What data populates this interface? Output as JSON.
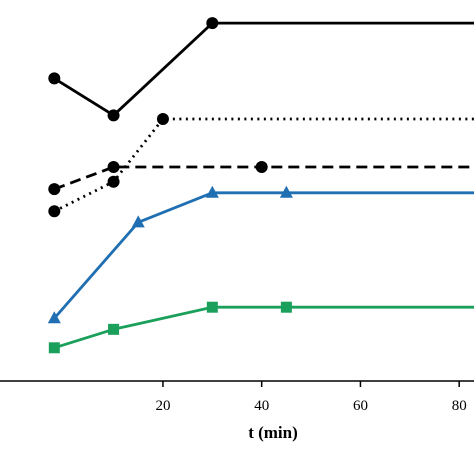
{
  "chart_data": {
    "type": "line",
    "xlabel": "t (min)",
    "ylabel": "",
    "title": "",
    "xlim": [
      -13,
      83
    ],
    "ylim": [
      0,
      100
    ],
    "x_ticks": [
      20,
      40,
      60,
      80
    ],
    "x_tick_labels": [
      "20",
      "40",
      "60",
      "80"
    ],
    "grid": false,
    "series": [
      {
        "color": "#000000",
        "line_style": "solid",
        "marker": "circle",
        "x": [
          -2,
          10,
          30,
          83
        ],
        "y": [
          82,
          72,
          97,
          97
        ]
      },
      {
        "color": "#000000",
        "line_style": "dotted",
        "marker": "circle",
        "x": [
          -2,
          10,
          20,
          83
        ],
        "y": [
          46,
          54,
          71,
          71
        ]
      },
      {
        "color": "#000000",
        "line_style": "dashed",
        "marker": "circle",
        "x": [
          -2,
          10,
          40,
          83
        ],
        "y": [
          52,
          58,
          58,
          58
        ]
      },
      {
        "color": "#1f6fb2",
        "line_style": "solid",
        "marker": "triangle",
        "x": [
          -2,
          15,
          30,
          45,
          83
        ],
        "y": [
          17,
          43,
          51,
          51,
          51
        ]
      },
      {
        "color": "#1aa05a",
        "line_style": "solid",
        "marker": "square",
        "x": [
          -2,
          10,
          30,
          45,
          83
        ],
        "y": [
          9,
          14,
          20,
          20,
          20
        ]
      }
    ]
  }
}
